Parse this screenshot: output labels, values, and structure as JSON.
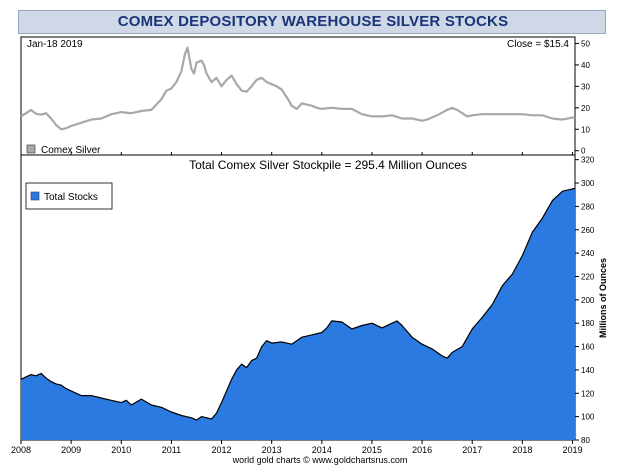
{
  "title": "COMEX DEPOSITORY WAREHOUSE SILVER STOCKS",
  "footer": "world gold charts © www.goldchartsrus.com",
  "colors": {
    "title_bg": "#d0d8e8",
    "title_text": "#1a3478",
    "silver_line": "#a8a8a8",
    "stocks_fill": "#2a7ae2",
    "stocks_line": "#000000"
  },
  "chart_data": [
    {
      "type": "line",
      "name": "silver-price-panel",
      "date_label": "Jan-18  2019",
      "close_label": "Close = $15.4",
      "legend": [
        {
          "label": "Comex Silver",
          "color": "#a8a8a8"
        }
      ],
      "legend_position": "bottom-left",
      "y_ticks": [
        0,
        10,
        20,
        30,
        40,
        50
      ],
      "ylim": [
        -2,
        53
      ],
      "xlim": [
        2008.0,
        2019.05
      ],
      "grid": false,
      "series": [
        {
          "name": "Comex Silver",
          "x": [
            2008.0,
            2008.1,
            2008.2,
            2008.3,
            2008.4,
            2008.5,
            2008.6,
            2008.7,
            2008.75,
            2008.8,
            2008.9,
            2009.0,
            2009.2,
            2009.4,
            2009.6,
            2009.8,
            2009.9,
            2010.0,
            2010.2,
            2010.4,
            2010.6,
            2010.8,
            2010.9,
            2011.0,
            2011.1,
            2011.2,
            2011.27,
            2011.32,
            2011.4,
            2011.45,
            2011.5,
            2011.6,
            2011.65,
            2011.7,
            2011.8,
            2011.9,
            2012.0,
            2012.1,
            2012.2,
            2012.3,
            2012.4,
            2012.5,
            2012.6,
            2012.7,
            2012.8,
            2012.9,
            2013.0,
            2013.1,
            2013.2,
            2013.3,
            2013.4,
            2013.5,
            2013.6,
            2013.7,
            2013.8,
            2013.9,
            2014.0,
            2014.2,
            2014.4,
            2014.6,
            2014.8,
            2015.0,
            2015.2,
            2015.4,
            2015.6,
            2015.8,
            2016.0,
            2016.1,
            2016.3,
            2016.5,
            2016.6,
            2016.7,
            2016.8,
            2016.9,
            2017.0,
            2017.2,
            2017.4,
            2017.6,
            2017.8,
            2018.0,
            2018.2,
            2018.4,
            2018.6,
            2018.8,
            2019.0,
            2019.05
          ],
          "values": [
            16,
            17.5,
            19,
            17.2,
            16.8,
            17.5,
            15,
            12,
            11,
            10,
            10.5,
            11.5,
            13,
            14.5,
            15,
            17,
            17.5,
            18,
            17.5,
            18.5,
            19,
            24,
            28,
            29,
            32,
            37,
            45,
            48,
            38,
            36,
            41,
            42,
            40,
            36,
            32,
            34,
            30,
            33,
            35,
            31,
            28,
            27.5,
            30,
            33,
            34,
            32,
            31,
            30,
            28.5,
            25,
            21,
            19.5,
            22,
            21.5,
            21,
            20,
            19.5,
            20,
            19.5,
            19.5,
            17,
            16,
            16,
            16.5,
            15,
            15,
            14,
            14.5,
            16.5,
            19,
            20,
            19,
            17.5,
            16,
            16.5,
            17,
            17,
            17,
            17,
            17,
            16.5,
            16.5,
            15,
            14.5,
            15.5,
            15.4
          ]
        }
      ]
    },
    {
      "type": "area",
      "name": "total-stocks-panel",
      "title": "Total Comex Silver Stockpile = 295.4 Million Ounces",
      "ylabel": "Millions of Ounces",
      "legend": [
        {
          "label": "Total Stocks",
          "color": "#2a7ae2"
        }
      ],
      "legend_position": "top-left",
      "y_ticks": [
        80,
        100,
        120,
        140,
        160,
        180,
        200,
        220,
        240,
        260,
        280,
        300,
        320
      ],
      "ylim": [
        80,
        324
      ],
      "x_ticks": [
        2008,
        2009,
        2010,
        2011,
        2012,
        2013,
        2014,
        2015,
        2016,
        2017,
        2018,
        2019
      ],
      "xlim": [
        2008.0,
        2019.05
      ],
      "grid": false,
      "series": [
        {
          "name": "Total Stocks",
          "x": [
            2008.0,
            2008.1,
            2008.2,
            2008.3,
            2008.4,
            2008.5,
            2008.6,
            2008.7,
            2008.8,
            2008.9,
            2009.0,
            2009.2,
            2009.4,
            2009.6,
            2009.8,
            2010.0,
            2010.1,
            2010.2,
            2010.4,
            2010.6,
            2010.8,
            2011.0,
            2011.2,
            2011.4,
            2011.5,
            2011.6,
            2011.8,
            2011.9,
            2012.0,
            2012.1,
            2012.2,
            2012.3,
            2012.4,
            2012.5,
            2012.6,
            2012.7,
            2012.8,
            2012.9,
            2013.0,
            2013.2,
            2013.4,
            2013.6,
            2013.8,
            2014.0,
            2014.1,
            2014.2,
            2014.4,
            2014.6,
            2014.8,
            2015.0,
            2015.2,
            2015.4,
            2015.5,
            2015.6,
            2015.8,
            2016.0,
            2016.2,
            2016.4,
            2016.5,
            2016.6,
            2016.8,
            2017.0,
            2017.2,
            2017.4,
            2017.6,
            2017.8,
            2018.0,
            2018.2,
            2018.4,
            2018.6,
            2018.8,
            2019.0,
            2019.05
          ],
          "values": [
            132,
            134,
            136,
            135,
            137,
            133,
            130,
            128,
            127,
            124,
            122,
            118,
            118,
            116,
            114,
            112,
            114,
            110,
            115,
            110,
            108,
            104,
            101,
            99,
            97,
            100,
            98,
            103,
            112,
            122,
            132,
            140,
            145,
            142,
            148,
            150,
            160,
            165,
            163,
            164,
            162,
            168,
            170,
            172,
            176,
            182,
            181,
            175,
            178,
            180,
            176,
            180,
            182,
            178,
            168,
            162,
            158,
            152,
            150,
            155,
            160,
            175,
            185,
            196,
            212,
            222,
            238,
            258,
            270,
            285,
            293,
            295,
            295.4
          ]
        }
      ]
    }
  ]
}
